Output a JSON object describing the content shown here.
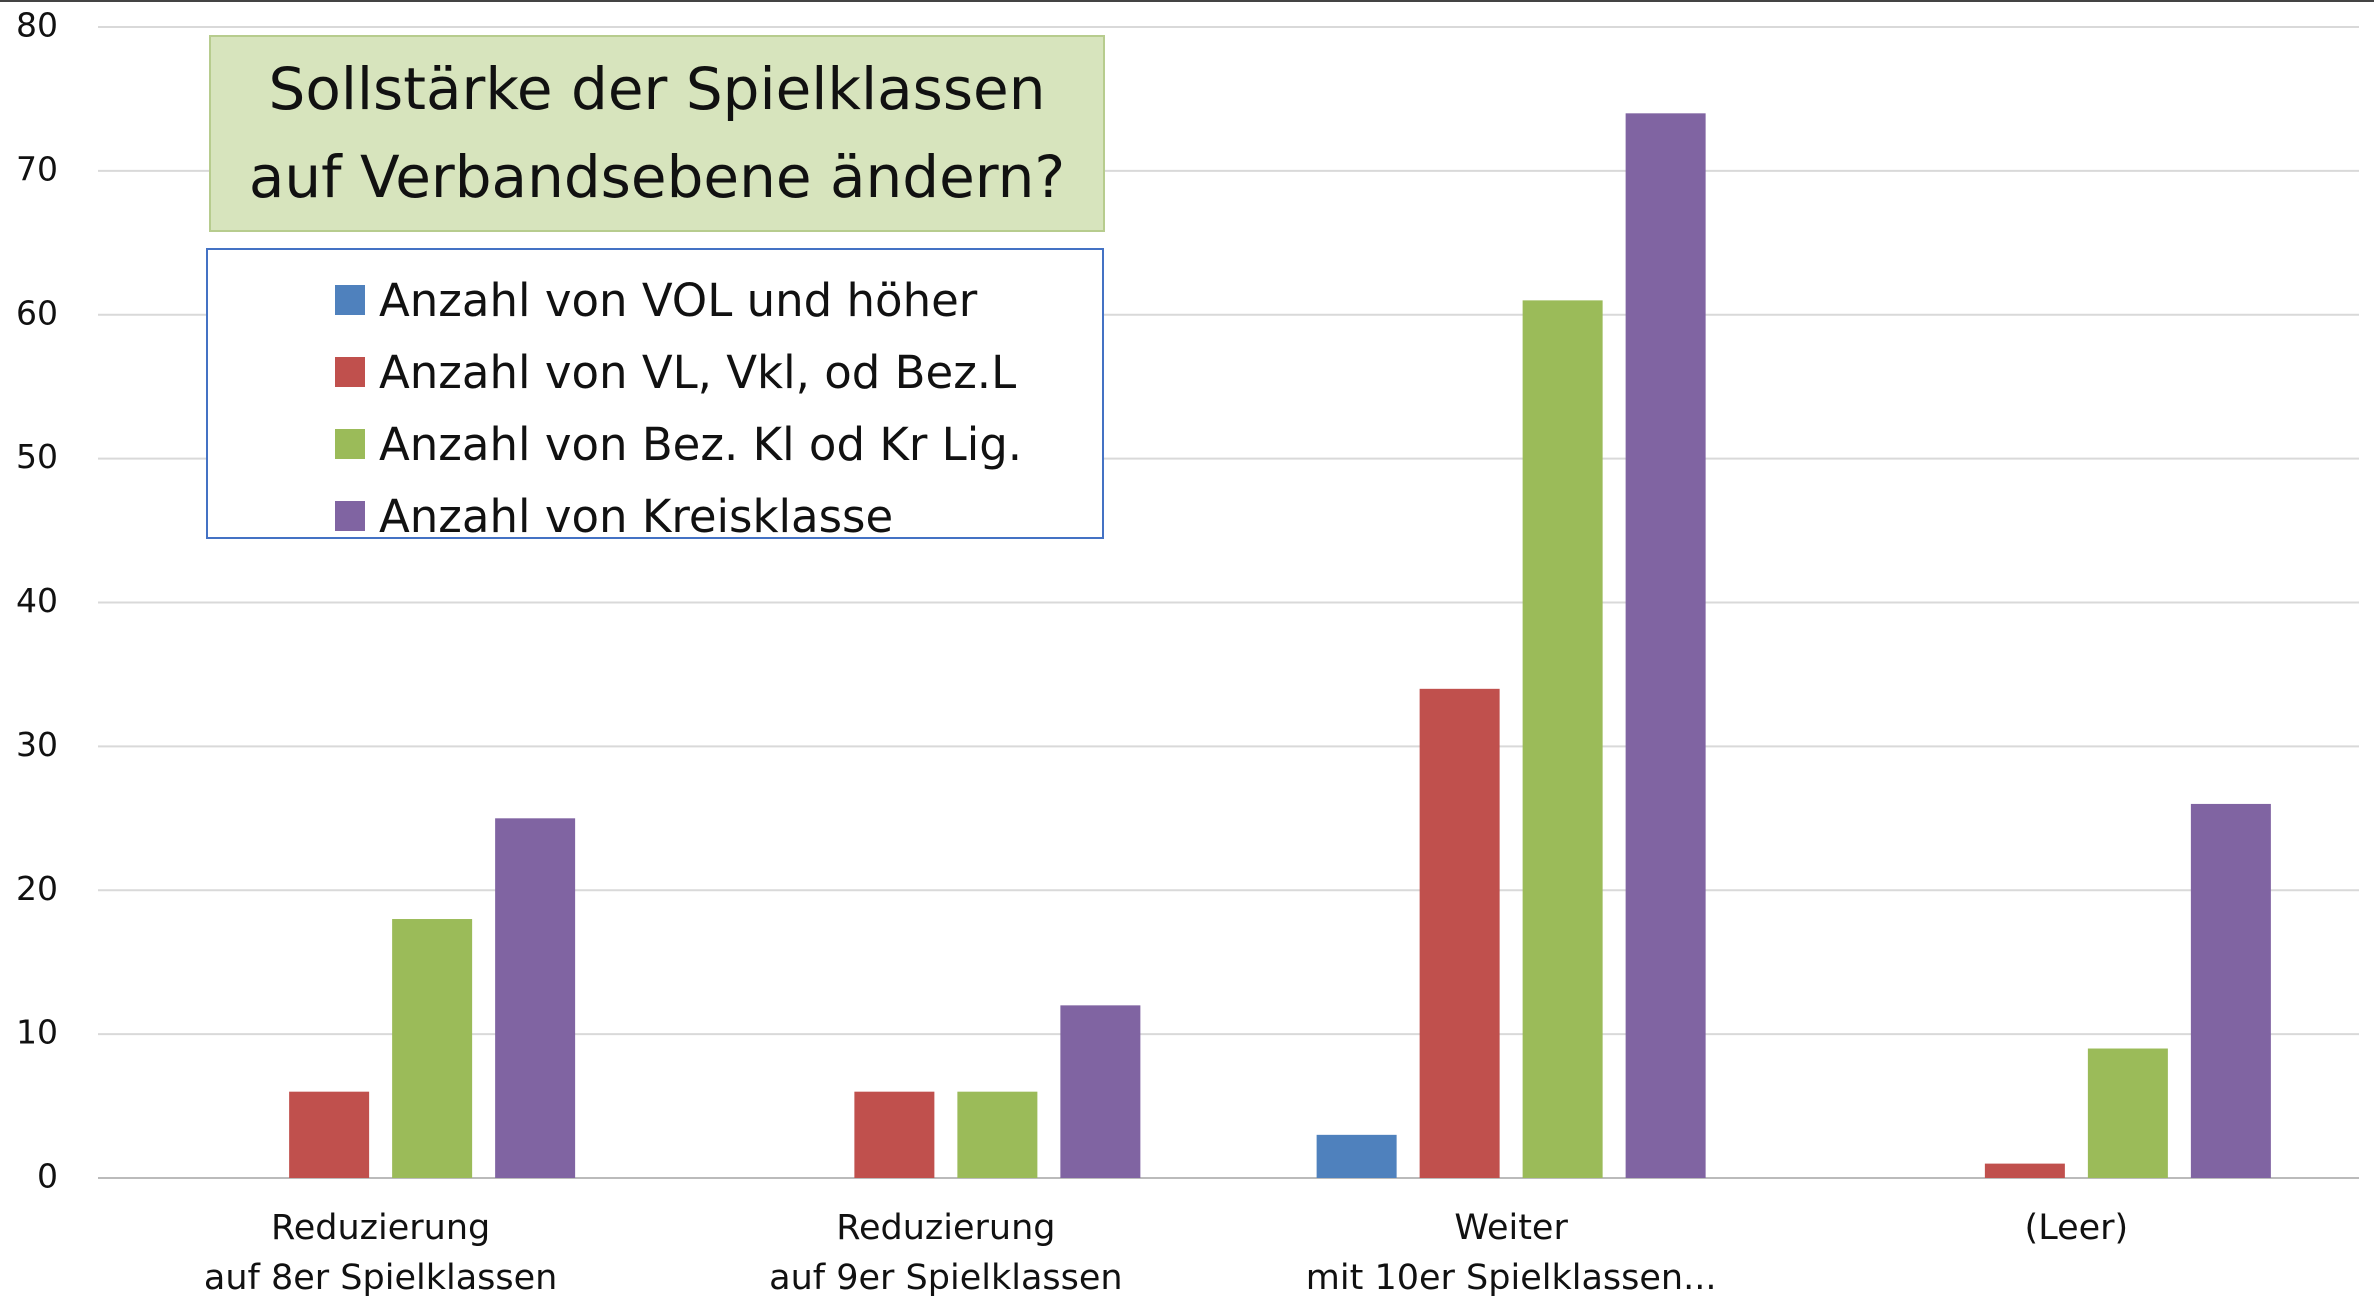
{
  "chart_data": {
    "type": "bar",
    "title": "Sollstärke der Spielklassen\nauf Verbandsebene ändern?",
    "categories": [
      "Reduzierung\nauf 8er Spielklassen",
      "Reduzierung\nauf 9er Spielklassen",
      "Weiter\nmit 10er Spielklassen...",
      "(Leer)"
    ],
    "series": [
      {
        "name": "Anzahl von VOL und höher",
        "color": "#4f81bd",
        "values": [
          null,
          null,
          3,
          null
        ]
      },
      {
        "name": "Anzahl von VL, Vkl, od Bez.L",
        "color": "#c0504d",
        "values": [
          6,
          6,
          34,
          1
        ]
      },
      {
        "name": "Anzahl von Bez. Kl od Kr Lig.",
        "color": "#9bbb59",
        "values": [
          18,
          6,
          61,
          9
        ]
      },
      {
        "name": "Anzahl von Kreisklasse",
        "color": "#8064a2",
        "values": [
          25,
          12,
          74,
          26
        ]
      }
    ],
    "ylim": [
      0,
      80
    ],
    "yticks": [
      0,
      10,
      20,
      30,
      40,
      50,
      60,
      70,
      80
    ],
    "grid": true
  }
}
